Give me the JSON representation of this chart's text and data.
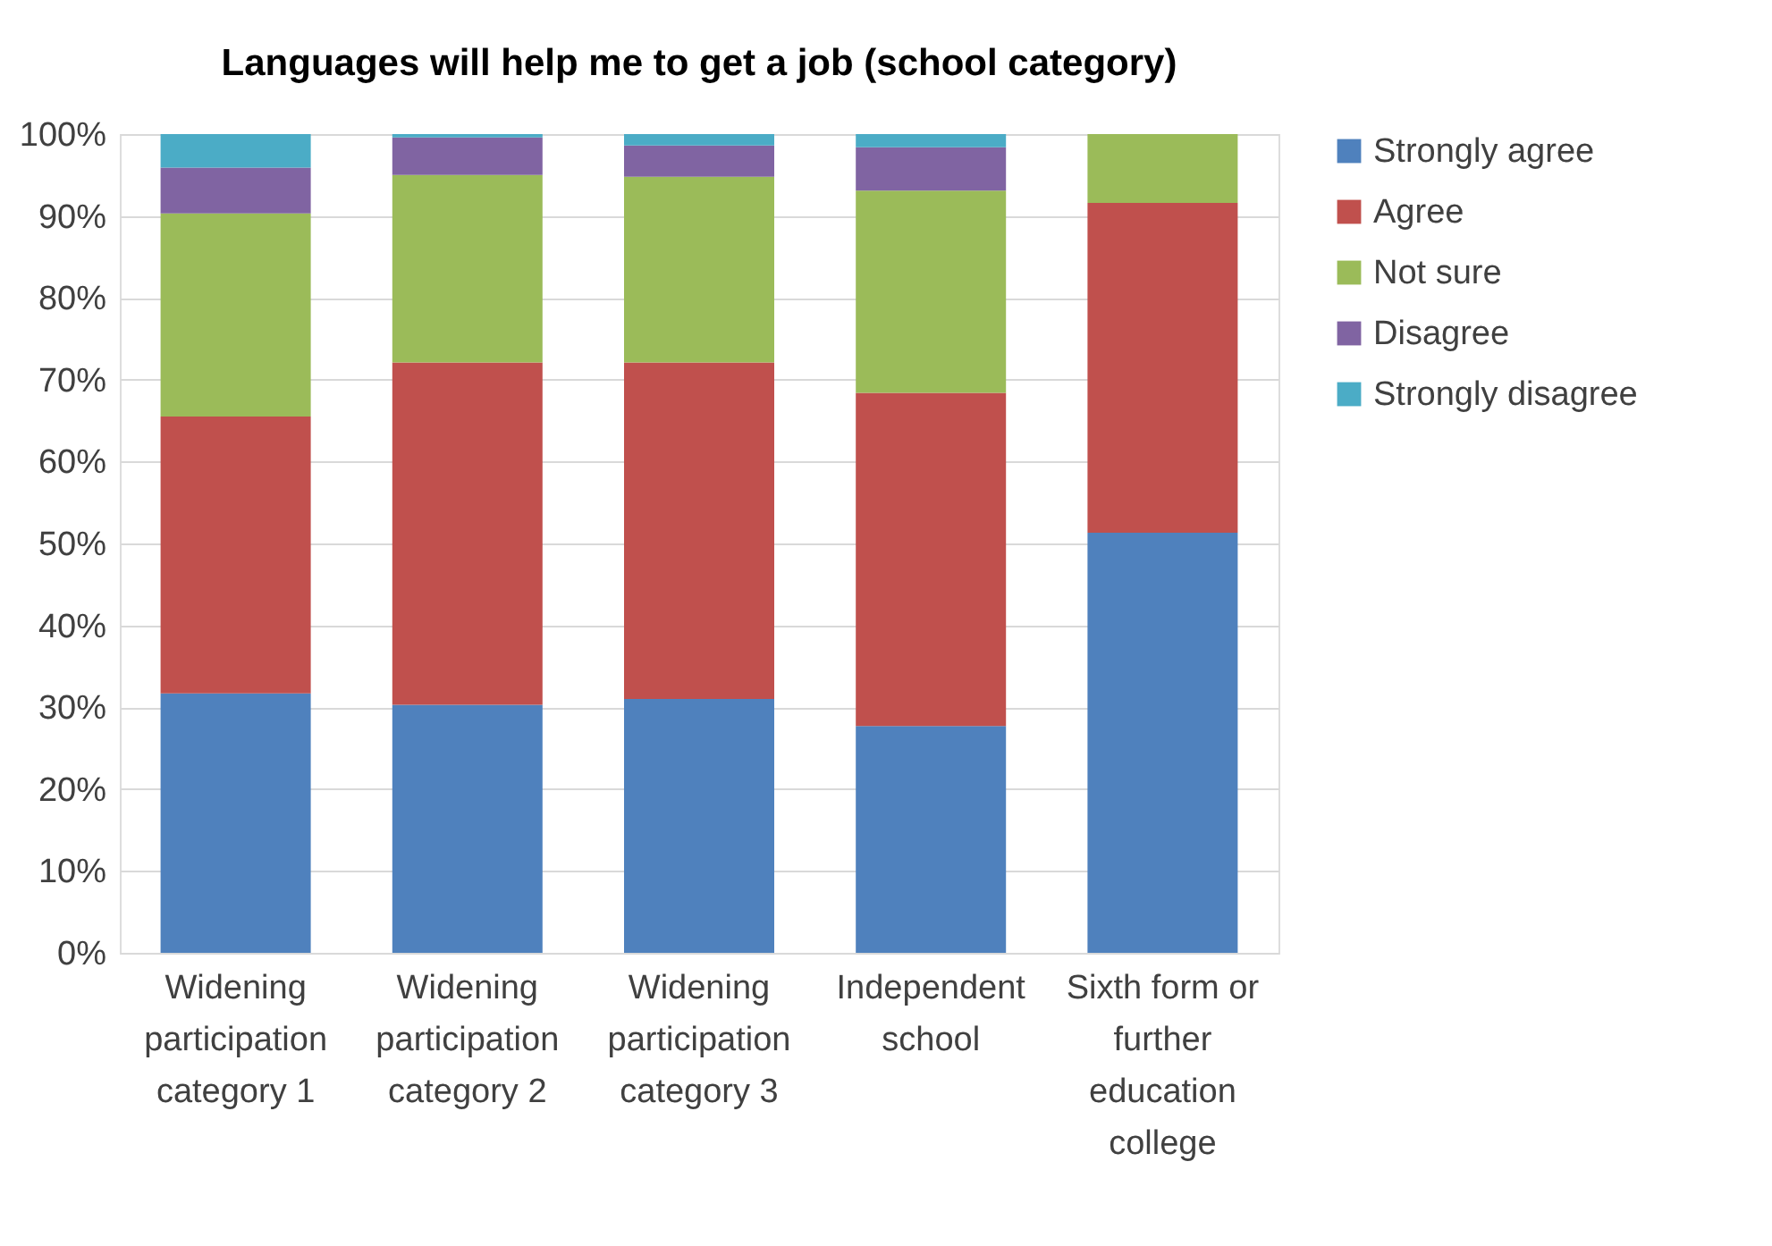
{
  "chart_data": {
    "type": "bar",
    "title": "Languages will help me to get a job (school category)",
    "categories": [
      "Widening participation category 1",
      "Widening participation category 2",
      "Widening participation category 3",
      "Independent school",
      "Sixth form or further education college"
    ],
    "stacked": true,
    "series": [
      {
        "name": "Strongly agree",
        "color": "#4f81bd",
        "values": [
          31.7,
          30.3,
          31.0,
          27.7,
          51.3
        ]
      },
      {
        "name": "Agree",
        "color": "#c0504d",
        "values": [
          33.8,
          41.8,
          41.1,
          40.7,
          40.3
        ]
      },
      {
        "name": "Not sure",
        "color": "#9bbb59",
        "values": [
          24.8,
          22.9,
          22.7,
          24.7,
          8.4
        ]
      },
      {
        "name": "Disagree",
        "color": "#8064a2",
        "values": [
          5.6,
          4.6,
          3.8,
          5.3,
          0
        ]
      },
      {
        "name": "Strongly disagree",
        "color": "#4bacc6",
        "values": [
          4.1,
          0.4,
          1.4,
          1.6,
          0
        ]
      }
    ],
    "ylim": [
      0,
      100
    ],
    "yticks": [
      {
        "value": 0,
        "label": "0%"
      },
      {
        "value": 10,
        "label": "10%"
      },
      {
        "value": 20,
        "label": "20%"
      },
      {
        "value": 30,
        "label": "30%"
      },
      {
        "value": 40,
        "label": "40%"
      },
      {
        "value": 50,
        "label": "50%"
      },
      {
        "value": 60,
        "label": "60%"
      },
      {
        "value": 70,
        "label": "70%"
      },
      {
        "value": 80,
        "label": "80%"
      },
      {
        "value": 90,
        "label": "90%"
      },
      {
        "value": 100,
        "label": "100%"
      }
    ],
    "grid": "y",
    "legend": "right"
  }
}
